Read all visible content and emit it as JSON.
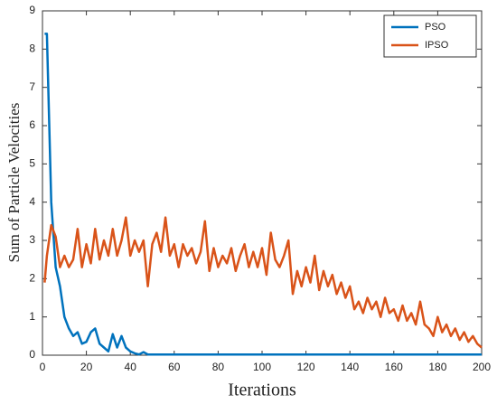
{
  "chart_data": {
    "type": "line",
    "xlabel": "Iterations",
    "ylabel": "Sum of Particle Velocities",
    "x": [
      1,
      2,
      4,
      6,
      8,
      10,
      12,
      14,
      16,
      18,
      20,
      22,
      24,
      26,
      28,
      30,
      32,
      34,
      36,
      38,
      40,
      42,
      44,
      46,
      48,
      50,
      52,
      54,
      56,
      58,
      60,
      62,
      64,
      66,
      68,
      70,
      72,
      74,
      76,
      78,
      80,
      82,
      84,
      86,
      88,
      90,
      92,
      94,
      96,
      98,
      100,
      102,
      104,
      106,
      108,
      110,
      112,
      114,
      116,
      118,
      120,
      122,
      124,
      126,
      128,
      130,
      132,
      134,
      136,
      138,
      140,
      142,
      144,
      146,
      148,
      150,
      152,
      154,
      156,
      158,
      160,
      162,
      164,
      166,
      168,
      170,
      172,
      174,
      176,
      178,
      180,
      182,
      184,
      186,
      188,
      190,
      192,
      194,
      196,
      198,
      200
    ],
    "series": [
      {
        "name": "PSO",
        "color": "#0072bd",
        "values": [
          8.4,
          8.4,
          4.0,
          2.3,
          1.8,
          1.0,
          0.7,
          0.5,
          0.6,
          0.3,
          0.35,
          0.6,
          0.7,
          0.3,
          0.2,
          0.1,
          0.55,
          0.2,
          0.5,
          0.2,
          0.1,
          0.05,
          0.02,
          0.08,
          0.02,
          0.02,
          0.02,
          0.02,
          0.02,
          0.02,
          0.02,
          0.02,
          0.02,
          0.02,
          0.02,
          0.02,
          0.02,
          0.02,
          0.02,
          0.02,
          0.02,
          0.02,
          0.02,
          0.02,
          0.02,
          0.02,
          0.02,
          0.02,
          0.02,
          0.02,
          0.02,
          0.02,
          0.02,
          0.02,
          0.02,
          0.02,
          0.02,
          0.02,
          0.02,
          0.02,
          0.02,
          0.02,
          0.02,
          0.02,
          0.02,
          0.02,
          0.02,
          0.02,
          0.02,
          0.02,
          0.02,
          0.02,
          0.02,
          0.02,
          0.02,
          0.02,
          0.02,
          0.02,
          0.02,
          0.02,
          0.02,
          0.02,
          0.02,
          0.02,
          0.02,
          0.02,
          0.02,
          0.02,
          0.02,
          0.02,
          0.02,
          0.02,
          0.02,
          0.02,
          0.02,
          0.02,
          0.02,
          0.02,
          0.02,
          0.02,
          0.02
        ]
      },
      {
        "name": "IPSO",
        "color": "#d95319",
        "values": [
          1.9,
          2.6,
          3.4,
          3.1,
          2.3,
          2.6,
          2.3,
          2.5,
          3.3,
          2.3,
          2.9,
          2.4,
          3.3,
          2.5,
          3.0,
          2.6,
          3.3,
          2.6,
          3.0,
          3.6,
          2.6,
          3.0,
          2.7,
          3.0,
          1.8,
          2.9,
          3.2,
          2.7,
          3.6,
          2.6,
          2.9,
          2.3,
          2.9,
          2.6,
          2.8,
          2.4,
          2.7,
          3.5,
          2.2,
          2.8,
          2.3,
          2.6,
          2.4,
          2.8,
          2.2,
          2.6,
          2.9,
          2.3,
          2.7,
          2.3,
          2.8,
          2.1,
          3.2,
          2.5,
          2.3,
          2.6,
          3.0,
          1.6,
          2.2,
          1.8,
          2.3,
          1.9,
          2.6,
          1.7,
          2.2,
          1.8,
          2.1,
          1.6,
          1.9,
          1.5,
          1.8,
          1.2,
          1.4,
          1.1,
          1.5,
          1.2,
          1.4,
          1.0,
          1.5,
          1.1,
          1.2,
          0.9,
          1.3,
          0.9,
          1.1,
          0.8,
          1.4,
          0.8,
          0.7,
          0.5,
          1.0,
          0.6,
          0.8,
          0.5,
          0.7,
          0.4,
          0.6,
          0.35,
          0.5,
          0.3,
          0.2
        ]
      }
    ],
    "xlim": [
      0,
      200
    ],
    "xticks": [
      0,
      20,
      40,
      60,
      80,
      100,
      120,
      140,
      160,
      180,
      200
    ],
    "ylim": [
      0,
      9
    ],
    "yticks": [
      0,
      1,
      2,
      3,
      4,
      5,
      6,
      7,
      8,
      9
    ],
    "legend": "upper right"
  }
}
